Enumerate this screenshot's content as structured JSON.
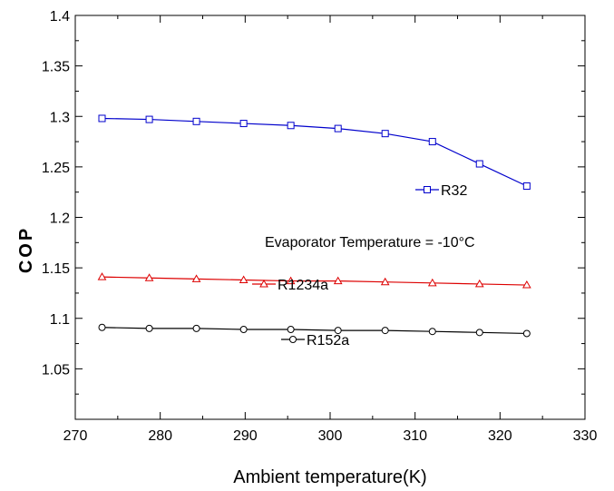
{
  "chart_data": {
    "type": "line",
    "xlabel": "Ambient temperature(K)",
    "ylabel": "COP",
    "xlim": [
      270,
      330
    ],
    "ylim": [
      1.0,
      1.4
    ],
    "xticks": [
      270,
      280,
      290,
      300,
      310,
      320,
      330
    ],
    "xtick_labels": [
      "270",
      "280",
      "290",
      "300",
      "310",
      "320",
      "330"
    ],
    "yticks": [
      1.05,
      1.1,
      1.15,
      1.2,
      1.25,
      1.3,
      1.35,
      1.4
    ],
    "ytick_labels": [
      "1.05",
      "1.1",
      "1.15",
      "1.2",
      "1.25",
      "1.3",
      "1.35",
      "1.4"
    ],
    "grid": false,
    "x": [
      273.15,
      278.71,
      284.26,
      289.82,
      295.37,
      300.93,
      306.48,
      312.04,
      317.59,
      323.15
    ],
    "series": [
      {
        "name": "R32",
        "color": "#0000cc",
        "marker": "square",
        "values": [
          1.298,
          1.297,
          1.295,
          1.293,
          1.291,
          1.288,
          1.283,
          1.275,
          1.253,
          1.231
        ]
      },
      {
        "name": "R1234a",
        "color": "#dd0000",
        "marker": "triangle",
        "values": [
          1.141,
          1.14,
          1.139,
          1.138,
          1.137,
          1.137,
          1.136,
          1.135,
          1.134,
          1.133
        ]
      },
      {
        "name": "R152a",
        "color": "#000000",
        "marker": "circle",
        "values": [
          1.091,
          1.09,
          1.09,
          1.089,
          1.089,
          1.088,
          1.088,
          1.087,
          1.086,
          1.085
        ]
      }
    ],
    "annotation": "Evaporator Temperature = -10°C"
  }
}
